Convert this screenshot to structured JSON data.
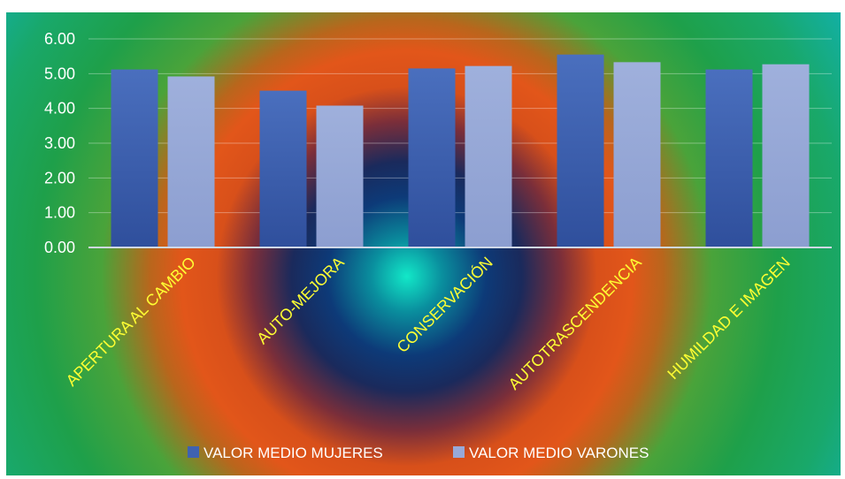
{
  "chart_data": {
    "type": "bar",
    "categories": [
      "APERTURA AL CAMBIO",
      "AUTO-MEJORA",
      "CONSERVACIÓN",
      "AUTOTRASCENDENCIA",
      "HUMILDAD E IMAGEN"
    ],
    "series": [
      {
        "name": "VALOR MEDIO MUJERES",
        "values": [
          5.12,
          4.51,
          5.15,
          5.55,
          5.12
        ],
        "color": "#3f62b0"
      },
      {
        "name": "VALOR MEDIO VARONES",
        "values": [
          4.92,
          4.08,
          5.22,
          5.33,
          5.27
        ],
        "color": "#98a9d8"
      }
    ],
    "yticks": [
      "0.00",
      "1.00",
      "2.00",
      "3.00",
      "4.00",
      "5.00",
      "6.00"
    ],
    "ylim": [
      0,
      6
    ],
    "grid": true,
    "legend": "bottom",
    "title": "",
    "xlabel": "",
    "ylabel": ""
  }
}
